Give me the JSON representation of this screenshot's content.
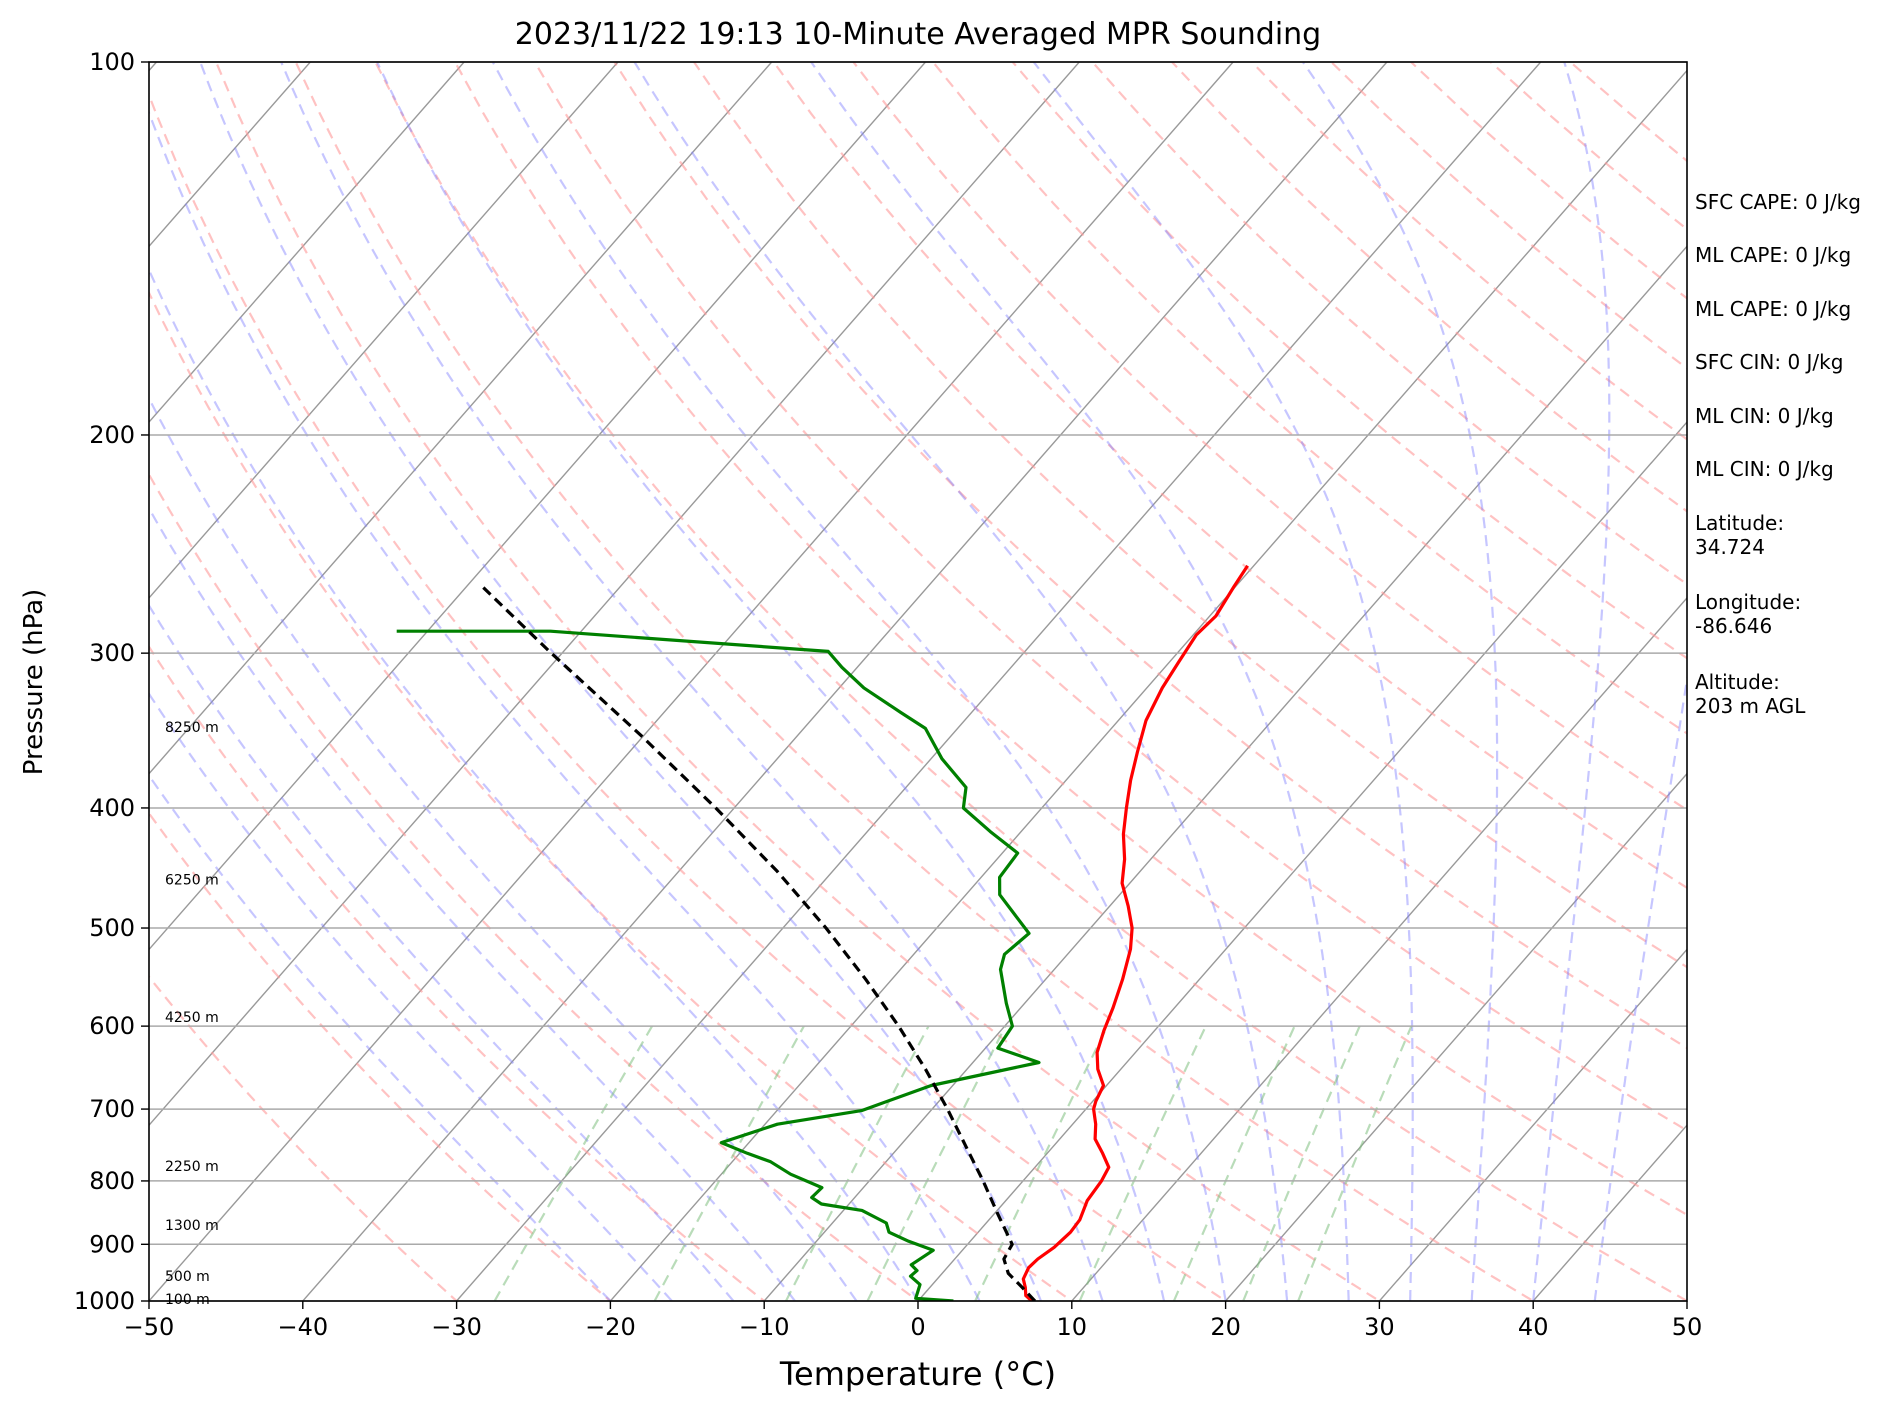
{
  "chart_data": {
    "type": "line",
    "title": "2023/11/22 19:13 10-Minute Averaged MPR Sounding",
    "xlabel": "Temperature (°C)",
    "ylabel": "Pressure (hPa)",
    "xlim": [
      -50,
      50
    ],
    "ylim": [
      1000,
      100
    ],
    "y_scale": "log",
    "skew": true,
    "grid": true,
    "x_ticks": [
      -50,
      -40,
      -30,
      -20,
      -10,
      0,
      10,
      20,
      30,
      40,
      50
    ],
    "x_tick_labels": [
      "−50",
      "−40",
      "−30",
      "−20",
      "−10",
      "0",
      "10",
      "20",
      "30",
      "40",
      "50"
    ],
    "y_ticks": [
      1000,
      900,
      800,
      700,
      600,
      500,
      400,
      300,
      200,
      100
    ],
    "y_tick_labels": [
      "1000",
      "900",
      "800",
      "700",
      "600",
      "500",
      "400",
      "300",
      "200",
      "100"
    ],
    "height_labels": [
      {
        "p": 996,
        "text": "100 m"
      },
      {
        "p": 955,
        "text": "500 m"
      },
      {
        "p": 868,
        "text": "1300 m"
      },
      {
        "p": 778,
        "text": "2250 m"
      },
      {
        "p": 590,
        "text": "4250 m"
      },
      {
        "p": 457,
        "text": "6250 m"
      },
      {
        "p": 344,
        "text": "8250 m"
      }
    ],
    "series": [
      {
        "color": "#ff0000",
        "dash": "solid",
        "values": [
          [
            1000,
            7.4
          ],
          [
            990,
            6.7
          ],
          [
            975,
            6.2
          ],
          [
            960,
            5.6
          ],
          [
            940,
            5.3
          ],
          [
            925,
            5.4
          ],
          [
            905,
            5.8
          ],
          [
            880,
            6.0
          ],
          [
            860,
            5.9
          ],
          [
            840,
            5.5
          ],
          [
            830,
            5.3
          ],
          [
            800,
            5.1
          ],
          [
            780,
            4.8
          ],
          [
            760,
            3.6
          ],
          [
            740,
            2.3
          ],
          [
            720,
            1.5
          ],
          [
            700,
            0.5
          ],
          [
            690,
            0.2
          ],
          [
            670,
            -0.2
          ],
          [
            650,
            -1.5
          ],
          [
            630,
            -2.5
          ],
          [
            605,
            -3.3
          ],
          [
            580,
            -4.0
          ],
          [
            550,
            -5.0
          ],
          [
            520,
            -6.2
          ],
          [
            500,
            -7.3
          ],
          [
            480,
            -8.8
          ],
          [
            460,
            -10.5
          ],
          [
            440,
            -11.7
          ],
          [
            420,
            -13.2
          ],
          [
            400,
            -14.5
          ],
          [
            380,
            -15.8
          ],
          [
            360,
            -17.0
          ],
          [
            340,
            -18.2
          ],
          [
            320,
            -19.0
          ],
          [
            305,
            -19.4
          ],
          [
            290,
            -19.8
          ],
          [
            280,
            -19.6
          ],
          [
            265,
            -20.1
          ],
          [
            255,
            -20.4
          ]
        ]
      },
      {
        "color": "#008000",
        "dash": "solid",
        "values": [
          [
            1000,
            2.3
          ],
          [
            995,
            -0.3
          ],
          [
            970,
            -0.8
          ],
          [
            955,
            -1.9
          ],
          [
            945,
            -1.8
          ],
          [
            935,
            -2.5
          ],
          [
            910,
            -1.9
          ],
          [
            895,
            -4.0
          ],
          [
            880,
            -5.8
          ],
          [
            865,
            -6.5
          ],
          [
            845,
            -8.8
          ],
          [
            835,
            -11.8
          ],
          [
            825,
            -12.8
          ],
          [
            810,
            -12.7
          ],
          [
            790,
            -15.5
          ],
          [
            772,
            -17.5
          ],
          [
            760,
            -19.5
          ],
          [
            745,
            -21.8
          ],
          [
            720,
            -19.2
          ],
          [
            702,
            -14.5
          ],
          [
            670,
            -11.4
          ],
          [
            642,
            -5.7
          ],
          [
            625,
            -9.2
          ],
          [
            600,
            -9.5
          ],
          [
            575,
            -11.2
          ],
          [
            540,
            -13.5
          ],
          [
            525,
            -14.1
          ],
          [
            505,
            -13.7
          ],
          [
            470,
            -17.8
          ],
          [
            455,
            -18.8
          ],
          [
            435,
            -19.0
          ],
          [
            418,
            -22.0
          ],
          [
            400,
            -25.1
          ],
          [
            385,
            -26.1
          ],
          [
            365,
            -29.3
          ],
          [
            345,
            -32.1
          ],
          [
            335,
            -34.6
          ],
          [
            320,
            -38.4
          ],
          [
            308,
            -41.0
          ],
          [
            299,
            -42.8
          ],
          [
            288,
            -62.0
          ],
          [
            288,
            -72.0
          ]
        ]
      },
      {
        "color": "#000000",
        "dash": "dashed",
        "values": [
          [
            1000,
            7.6
          ],
          [
            975,
            6.0
          ],
          [
            950,
            4.3
          ],
          [
            925,
            3.2
          ],
          [
            900,
            2.9
          ],
          [
            850,
            0.2
          ],
          [
            800,
            -2.6
          ],
          [
            750,
            -5.7
          ],
          [
            700,
            -9.0
          ],
          [
            650,
            -12.7
          ],
          [
            600,
            -16.9
          ],
          [
            550,
            -21.7
          ],
          [
            500,
            -27.2
          ],
          [
            450,
            -33.6
          ],
          [
            400,
            -41.2
          ],
          [
            350,
            -50.1
          ],
          [
            300,
            -60.7
          ],
          [
            265,
            -69.0
          ]
        ]
      }
    ]
  },
  "side_panel": {
    "sfc_cape": "SFC CAPE: 0 J/kg",
    "ml_cape_1": "ML CAPE: 0 J/kg",
    "ml_cape_2": "ML CAPE: 0 J/kg",
    "sfc_cin": "SFC CIN: 0 J/kg",
    "ml_cin_1": "ML CIN: 0 J/kg",
    "ml_cin_2": "ML CIN: 0 J/kg",
    "latitude": "Latitude:\n34.724",
    "longitude": "Longitude:\n-86.646",
    "altitude": "Altitude:\n203 m AGL"
  },
  "colors": {
    "temperature": "#ff0000",
    "dewpoint": "#008000",
    "parcel": "#000000",
    "dry_adiabats": "#ff9999",
    "moist_adiabats": "#8080ff",
    "mixing_ratio": "#80c080",
    "isotherms": "#999999"
  }
}
